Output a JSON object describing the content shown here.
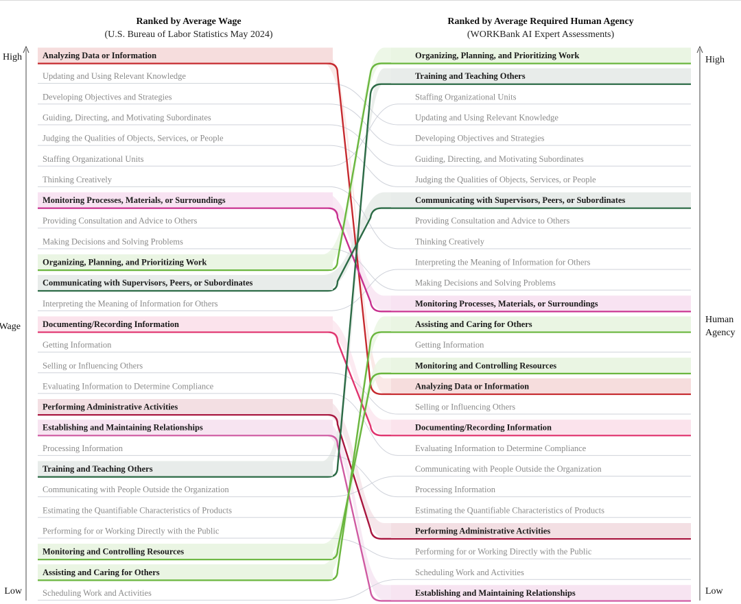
{
  "left_header": {
    "title": "Ranked by Average Wage",
    "subtitle": "(U.S. Bureau of Labor Statistics May 2024)"
  },
  "right_header": {
    "title": "Ranked by Average Required Human Agency",
    "subtitle": "(WORKBank AI Expert Assessments)"
  },
  "left_axis": {
    "high": "High",
    "mid": "Wage",
    "low": "Low"
  },
  "right_axis": {
    "high": "High",
    "mid_line1": "Human",
    "mid_line2": "Agency",
    "low": "Low"
  },
  "colors": {
    "red": "#c62a2f",
    "magenta": "#c8308f",
    "pink": "#e0336e",
    "crimson": "#a8163f",
    "rose": "#cf5aa2",
    "lightgreen": "#6ab63e",
    "darkgreen": "#2b6a45",
    "gray_line": "#cfd2da"
  },
  "left_items": [
    {
      "label": "Analyzing Data or Information",
      "highlight": true,
      "color": "red"
    },
    {
      "label": "Updating and Using Relevant Knowledge",
      "highlight": false
    },
    {
      "label": "Developing Objectives and Strategies",
      "highlight": false
    },
    {
      "label": "Guiding, Directing, and Motivating Subordinates",
      "highlight": false
    },
    {
      "label": "Judging the Qualities of Objects, Services, or People",
      "highlight": false
    },
    {
      "label": "Staffing Organizational Units",
      "highlight": false
    },
    {
      "label": "Thinking Creatively",
      "highlight": false
    },
    {
      "label": "Monitoring Processes, Materials, or Surroundings",
      "highlight": true,
      "color": "magenta"
    },
    {
      "label": "Providing Consultation and Advice to Others",
      "highlight": false
    },
    {
      "label": "Making Decisions and Solving Problems",
      "highlight": false
    },
    {
      "label": "Organizing, Planning, and Prioritizing Work",
      "highlight": true,
      "color": "lightgreen"
    },
    {
      "label": "Communicating with Supervisors, Peers, or Subordinates",
      "highlight": true,
      "color": "darkgreen"
    },
    {
      "label": "Interpreting the Meaning of Information for Others",
      "highlight": false
    },
    {
      "label": "Documenting/Recording Information",
      "highlight": true,
      "color": "pink"
    },
    {
      "label": "Getting Information",
      "highlight": false
    },
    {
      "label": "Selling or Influencing Others",
      "highlight": false
    },
    {
      "label": "Evaluating Information to Determine Compliance",
      "highlight": false
    },
    {
      "label": "Performing Administrative Activities",
      "highlight": true,
      "color": "crimson"
    },
    {
      "label": "Establishing and Maintaining Relationships",
      "highlight": true,
      "color": "rose"
    },
    {
      "label": "Processing Information",
      "highlight": false
    },
    {
      "label": "Training and Teaching Others",
      "highlight": true,
      "color": "darkgreen"
    },
    {
      "label": "Communicating with People Outside the Organization",
      "highlight": false
    },
    {
      "label": "Estimating the Quantifiable Characteristics of Products",
      "highlight": false
    },
    {
      "label": "Performing for or Working Directly with the Public",
      "highlight": false
    },
    {
      "label": "Monitoring and Controlling Resources",
      "highlight": true,
      "color": "lightgreen"
    },
    {
      "label": "Assisting and Caring for Others",
      "highlight": true,
      "color": "lightgreen"
    },
    {
      "label": "Scheduling Work and Activities",
      "highlight": false
    }
  ],
  "right_items": [
    {
      "label": "Organizing, Planning, and Prioritizing Work",
      "highlight": true,
      "color": "lightgreen"
    },
    {
      "label": "Training and Teaching Others",
      "highlight": true,
      "color": "darkgreen"
    },
    {
      "label": "Staffing Organizational Units",
      "highlight": false
    },
    {
      "label": "Updating and Using Relevant Knowledge",
      "highlight": false
    },
    {
      "label": "Developing Objectives and Strategies",
      "highlight": false
    },
    {
      "label": "Guiding, Directing, and Motivating Subordinates",
      "highlight": false
    },
    {
      "label": "Judging the Qualities of Objects, Services, or People",
      "highlight": false
    },
    {
      "label": "Communicating with Supervisors, Peers, or Subordinates",
      "highlight": true,
      "color": "darkgreen"
    },
    {
      "label": "Providing Consultation and Advice to Others",
      "highlight": false
    },
    {
      "label": "Thinking Creatively",
      "highlight": false
    },
    {
      "label": "Interpreting the Meaning of Information for Others",
      "highlight": false
    },
    {
      "label": "Making Decisions and Solving Problems",
      "highlight": false
    },
    {
      "label": "Monitoring Processes, Materials, or Surroundings",
      "highlight": true,
      "color": "magenta"
    },
    {
      "label": "Assisting and Caring for Others",
      "highlight": true,
      "color": "lightgreen"
    },
    {
      "label": "Getting Information",
      "highlight": false
    },
    {
      "label": "Monitoring and Controlling Resources",
      "highlight": true,
      "color": "lightgreen"
    },
    {
      "label": "Analyzing Data or Information",
      "highlight": true,
      "color": "red"
    },
    {
      "label": "Selling or Influencing Others",
      "highlight": false
    },
    {
      "label": "Documenting/Recording Information",
      "highlight": true,
      "color": "pink"
    },
    {
      "label": "Evaluating Information to Determine Compliance",
      "highlight": false
    },
    {
      "label": "Communicating with People Outside the Organization",
      "highlight": false
    },
    {
      "label": "Processing Information",
      "highlight": false
    },
    {
      "label": "Estimating the Quantifiable Characteristics of Products",
      "highlight": false
    },
    {
      "label": "Performing Administrative Activities",
      "highlight": true,
      "color": "crimson"
    },
    {
      "label": "Performing for or Working Directly with the Public",
      "highlight": false
    },
    {
      "label": "Scheduling Work and Activities",
      "highlight": false
    },
    {
      "label": "Establishing and Maintaining Relationships",
      "highlight": true,
      "color": "rose"
    }
  ]
}
